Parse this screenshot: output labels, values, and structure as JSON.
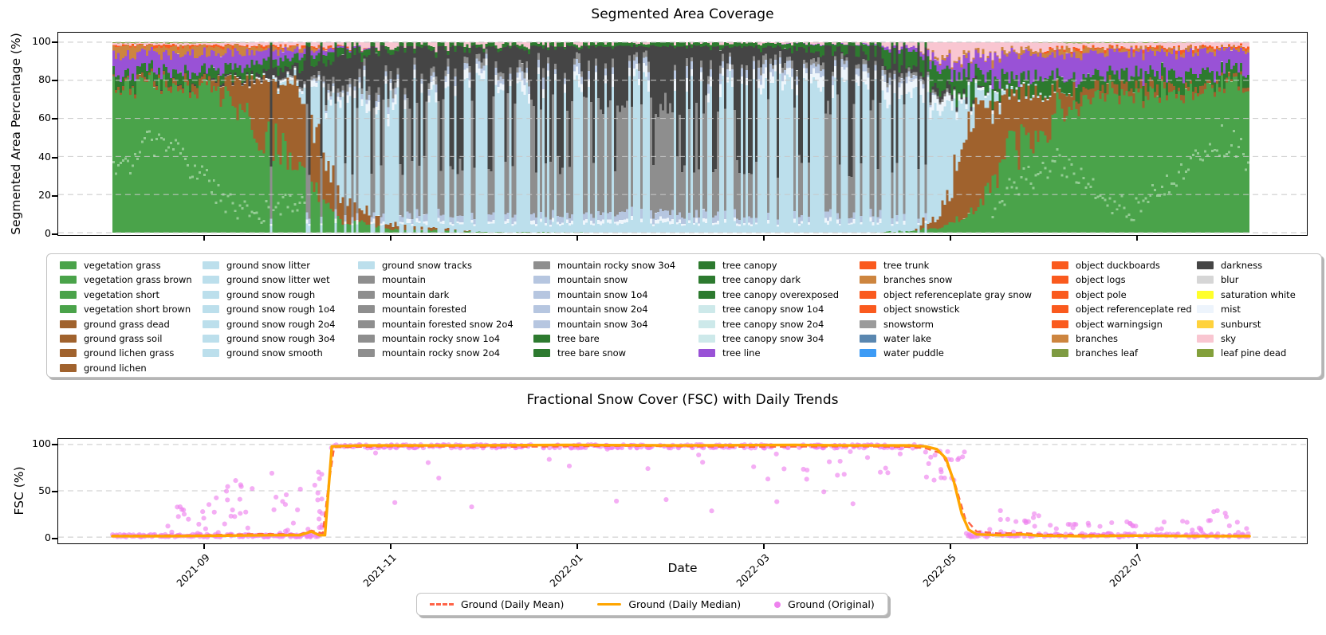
{
  "figure": {
    "background": "#ffffff"
  },
  "top_chart": {
    "title": "Segmented Area Coverage",
    "ylabel": "Segmented Area Percentage (%)",
    "yticks": [
      0,
      20,
      40,
      60,
      80,
      100
    ]
  },
  "bottom_chart": {
    "title": "Fractional Snow Cover (FSC) with Daily Trends",
    "ylabel": "FSC (%)",
    "xlabel": "Date",
    "yticks": [
      0,
      50,
      100
    ],
    "xticks": [
      "2021-09",
      "2021-11",
      "2022-01",
      "2022-03",
      "2022-05",
      "2022-07"
    ],
    "legend": [
      {
        "label": "Ground (Daily Mean)",
        "color": "#ff6347",
        "style": "dashed"
      },
      {
        "label": "Ground (Daily Median)",
        "color": "#ffa500",
        "style": "solid"
      },
      {
        "label": "Ground (Original)",
        "color": "#ee82ee",
        "style": "dot"
      }
    ]
  },
  "segmentation_legend": {
    "columns": [
      [
        {
          "label": "vegetation grass",
          "color": "#4aa34a"
        },
        {
          "label": "vegetation grass brown",
          "color": "#4aa34a"
        },
        {
          "label": "vegetation short",
          "color": "#4aa34a"
        },
        {
          "label": "vegetation short brown",
          "color": "#4aa34a"
        },
        {
          "label": "ground grass dead",
          "color": "#a0622d"
        },
        {
          "label": "ground grass soil",
          "color": "#a0622d"
        },
        {
          "label": "ground lichen grass",
          "color": "#a0622d"
        },
        {
          "label": "ground lichen",
          "color": "#a0622d"
        }
      ],
      [
        {
          "label": "ground snow litter",
          "color": "#bcdfec"
        },
        {
          "label": "ground snow litter wet",
          "color": "#bcdfec"
        },
        {
          "label": "ground snow rough",
          "color": "#bcdfec"
        },
        {
          "label": "ground snow rough 1o4",
          "color": "#bcdfec"
        },
        {
          "label": "ground snow rough 2o4",
          "color": "#bcdfec"
        },
        {
          "label": "ground snow rough 3o4",
          "color": "#bcdfec"
        },
        {
          "label": "ground snow smooth",
          "color": "#bcdfec"
        }
      ],
      [
        {
          "label": "ground snow tracks",
          "color": "#bcdfec"
        },
        {
          "label": "mountain",
          "color": "#8e8e8e"
        },
        {
          "label": "mountain dark",
          "color": "#8e8e8e"
        },
        {
          "label": "mountain forested",
          "color": "#8e8e8e"
        },
        {
          "label": "mountain forested snow 2o4",
          "color": "#8e8e8e"
        },
        {
          "label": "mountain rocky snow 1o4",
          "color": "#8e8e8e"
        },
        {
          "label": "mountain rocky snow 2o4",
          "color": "#8e8e8e"
        }
      ],
      [
        {
          "label": "mountain rocky snow 3o4",
          "color": "#8e8e8e"
        },
        {
          "label": "mountain snow",
          "color": "#b6c6e0"
        },
        {
          "label": "mountain snow 1o4",
          "color": "#b6c6e0"
        },
        {
          "label": "mountain snow 2o4",
          "color": "#b6c6e0"
        },
        {
          "label": "mountain snow 3o4",
          "color": "#b6c6e0"
        },
        {
          "label": "tree bare",
          "color": "#2d7a2f"
        },
        {
          "label": "tree bare snow",
          "color": "#2d7a2f"
        }
      ],
      [
        {
          "label": "tree canopy",
          "color": "#2d7a2f"
        },
        {
          "label": "tree canopy dark",
          "color": "#2d7a2f"
        },
        {
          "label": "tree canopy overexposed",
          "color": "#2d7a2f"
        },
        {
          "label": "tree canopy snow 1o4",
          "color": "#cde9ea"
        },
        {
          "label": "tree canopy snow 2o4",
          "color": "#cde9ea"
        },
        {
          "label": "tree canopy snow 3o4",
          "color": "#cde9ea"
        },
        {
          "label": "tree line",
          "color": "#9952d6"
        }
      ],
      [
        {
          "label": "tree trunk",
          "color": "#fa5a1e"
        },
        {
          "label": "branches snow",
          "color": "#cd853f"
        },
        {
          "label": "object referenceplate gray snow",
          "color": "#fa5a1e"
        },
        {
          "label": "object snowstick",
          "color": "#fa5a1e"
        },
        {
          "label": "snowstorm",
          "color": "#9b9b9b"
        },
        {
          "label": "water lake",
          "color": "#5a87b0"
        },
        {
          "label": "water puddle",
          "color": "#3d9bf5"
        }
      ],
      [
        {
          "label": "object duckboards",
          "color": "#fa5a1e"
        },
        {
          "label": "object logs",
          "color": "#fa5a1e"
        },
        {
          "label": "object pole",
          "color": "#fa5a1e"
        },
        {
          "label": "object referenceplate red",
          "color": "#fa5a1e"
        },
        {
          "label": "object warningsign",
          "color": "#fa5a1e"
        },
        {
          "label": "branches",
          "color": "#cd853f"
        },
        {
          "label": "branches leaf",
          "color": "#7e9b42"
        }
      ],
      [
        {
          "label": "darkness",
          "color": "#454545"
        },
        {
          "label": "blur",
          "color": "#d6d6d6"
        },
        {
          "label": "saturation white",
          "color": "#ffff2b"
        },
        {
          "label": "mist",
          "color": "#edf4fc"
        },
        {
          "label": "sunburst",
          "color": "#ffd23c"
        },
        {
          "label": "sky",
          "color": "#f9c6d1"
        },
        {
          "label": "leaf pine dead",
          "color": "#83a03b"
        }
      ]
    ]
  },
  "chart_data": [
    {
      "type": "area",
      "title": "Segmented Area Coverage",
      "ylabel": "Segmented Area Percentage (%)",
      "ylim": [
        0,
        105
      ],
      "x_range": [
        "2021-08",
        "2022-08"
      ],
      "xticks": [
        "2021-09",
        "2021-11",
        "2022-01",
        "2022-03",
        "2022-05",
        "2022-07"
      ],
      "grid": "horizontal-dashed",
      "colors": {
        "vegetation_grass": "#4aa34a",
        "ground_grass_dead": "#a0622d",
        "ground_snow": "#bcdfec",
        "mist": "#eef5fb",
        "mountain_snow": "#b6c6e0",
        "snow_gray": "#8e8e8e",
        "darkness": "#454545",
        "tree_canopy": "#2d7a2f",
        "tree_line": "#9952d6",
        "branches": "#cd853f",
        "tree_trunk": "#fa5a1e",
        "sky": "#f9c6d1",
        "leaf": "#83a03b"
      },
      "stack_order": [
        "vegetation_grass",
        "ground_grass_dead",
        "ground_snow",
        "mist",
        "mountain_snow",
        "snow_gray",
        "darkness",
        "tree_canopy",
        "tree_line",
        "branches",
        "tree_trunk",
        "sky",
        "leaf"
      ],
      "keyframes": [
        {
          "u": 0.0,
          "comp": {
            "vegetation_grass": 79,
            "ground_grass_dead": 1.5,
            "tree_canopy": 5,
            "tree_line": 8.5,
            "branches": 4,
            "tree_trunk": 0.7,
            "sky": 0.8,
            "leaf": 0.5
          }
        },
        {
          "u": 0.09,
          "comp": {
            "vegetation_grass": 77,
            "ground_grass_dead": 4,
            "tree_canopy": 5,
            "tree_line": 8,
            "branches": 3.5,
            "tree_trunk": 0.7,
            "sky": 1,
            "leaf": 0.5,
            "darkness": 0.5
          }
        },
        {
          "u": 0.13,
          "comp": {
            "vegetation_grass": 55,
            "ground_grass_dead": 26,
            "tree_canopy": 5.5,
            "tree_line": 6,
            "branches": 2.5,
            "tree_trunk": 0.8,
            "sky": 1.5,
            "darkness": 2,
            "mist": 0.7
          }
        },
        {
          "u": 0.165,
          "comp": {
            "vegetation_grass": 30,
            "ground_grass_dead": 45,
            "tree_canopy": 5,
            "tree_line": 3,
            "branches": 1.5,
            "tree_trunk": 0.8,
            "sky": 2.5,
            "darkness": 6,
            "mist": 1.5,
            "snow_gray": 1,
            "ground_snow": 3
          }
        },
        {
          "u": 0.2,
          "comp": {
            "vegetation_grass": 7,
            "ground_grass_dead": 13,
            "ground_snow": 50,
            "mist": 3.5,
            "mountain_snow": 2,
            "snow_gray": 3,
            "darkness": 11,
            "tree_canopy": 4,
            "tree_line": 1,
            "sky": 3,
            "tree_trunk": 0.5
          }
        },
        {
          "u": 0.24,
          "comp": {
            "vegetation_grass": 2,
            "ground_grass_dead": 3,
            "ground_snow": 68,
            "mist": 4.5,
            "mountain_snow": 3,
            "snow_gray": 4,
            "darkness": 12,
            "tree_canopy": 2.5,
            "sky": 3
          }
        },
        {
          "u": 0.32,
          "comp": {
            "vegetation_grass": 0.5,
            "ground_snow": 75,
            "mist": 4.5,
            "mountain_snow": 3.5,
            "snow_gray": 3.5,
            "darkness": 9,
            "tree_canopy": 2,
            "sky": 2.5
          }
        },
        {
          "u": 0.45,
          "comp": {
            "ground_snow": 78,
            "mist": 4,
            "mountain_snow": 4,
            "snow_gray": 3.5,
            "darkness": 7.5,
            "tree_canopy": 1.2,
            "sky": 1
          }
        },
        {
          "u": 0.58,
          "comp": {
            "ground_snow": 78,
            "mist": 5,
            "mountain_snow": 4,
            "snow_gray": 3,
            "darkness": 6,
            "tree_canopy": 2.5,
            "sky": 0.8
          }
        },
        {
          "u": 0.66,
          "comp": {
            "ground_snow": 75,
            "mist": 6.5,
            "mountain_snow": 3.5,
            "snow_gray": 2.5,
            "darkness": 3.5,
            "tree_canopy": 6,
            "sky": 1.2,
            "tree_line": 0.5
          }
        },
        {
          "u": 0.705,
          "comp": {
            "ground_snow": 70,
            "mist": 7,
            "mountain_snow": 2.5,
            "snow_gray": 2,
            "darkness": 2.5,
            "tree_canopy": 9,
            "sky": 3,
            "tree_line": 2,
            "vegetation_grass": 1
          }
        },
        {
          "u": 0.73,
          "comp": {
            "ground_snow": 52,
            "mist": 5,
            "snow_gray": 1.5,
            "darkness": 3,
            "tree_canopy": 10,
            "sky": 9,
            "tree_line": 5,
            "vegetation_grass": 3,
            "ground_grass_dead": 9,
            "branches": 1.5
          }
        },
        {
          "u": 0.755,
          "comp": {
            "ground_snow": 10,
            "mist": 2,
            "darkness": 1.5,
            "tree_canopy": 9,
            "sky": 8,
            "tree_line": 8,
            "vegetation_grass": 10,
            "ground_grass_dead": 50,
            "branches": 1.5
          }
        },
        {
          "u": 0.79,
          "comp": {
            "ground_snow": 1,
            "mist": 0.5,
            "tree_canopy": 8,
            "sky": 4,
            "tree_line": 12,
            "vegetation_grass": 44,
            "ground_grass_dead": 28,
            "branches": 2.5
          }
        },
        {
          "u": 0.85,
          "comp": {
            "tree_canopy": 7,
            "sky": 2.5,
            "tree_line": 11.5,
            "vegetation_grass": 70,
            "ground_grass_dead": 5.5,
            "branches": 2.2,
            "tree_trunk": 0.8,
            "leaf": 0.5
          }
        },
        {
          "u": 1.0,
          "comp": {
            "tree_canopy": 6,
            "sky": 2,
            "tree_line": 10,
            "vegetation_grass": 78.5,
            "ground_grass_dead": 1.5,
            "branches": 1.2,
            "tree_trunk": 0.8
          }
        }
      ],
      "night_duty": [
        [
          0,
          0
        ],
        [
          0.115,
          0
        ],
        [
          0.15,
          0.15
        ],
        [
          0.19,
          0.3
        ],
        [
          0.24,
          0.42
        ],
        [
          0.32,
          0.5
        ],
        [
          0.42,
          0.55
        ],
        [
          0.52,
          0.5
        ],
        [
          0.6,
          0.42
        ],
        [
          0.66,
          0.3
        ],
        [
          0.7,
          0.18
        ],
        [
          0.725,
          0.08
        ],
        [
          0.745,
          0.02
        ],
        [
          0.77,
          0
        ],
        [
          1,
          0
        ]
      ],
      "night_comp_a": {
        "ground_snow": 5,
        "mountain_snow": 4,
        "snow_gray": 58,
        "darkness": 30,
        "tree_canopy": 2,
        "mist": 2
      },
      "night_comp_b": {
        "ground_snow": 4,
        "mountain_snow": 3,
        "snow_gray": 26,
        "darkness": 64,
        "tree_canopy": 2,
        "mist": 1
      }
    },
    {
      "type": "line+scatter",
      "title": "Fractional Snow Cover (FSC) with Daily Trends",
      "xlabel": "Date",
      "ylabel": "FSC (%)",
      "ylim": [
        -6,
        106
      ],
      "x_range": [
        "2021-08",
        "2022-08"
      ],
      "series": [
        {
          "name": "Ground (Daily Mean)",
          "style": "dashed",
          "color": "#ff6347",
          "points": [
            [
              0,
              1.5
            ],
            [
              0.08,
              2
            ],
            [
              0.13,
              3.5
            ],
            [
              0.165,
              3
            ],
            [
              0.175,
              7
            ],
            [
              0.185,
              4
            ],
            [
              0.19,
              55
            ],
            [
              0.195,
              97
            ],
            [
              0.25,
              98
            ],
            [
              0.35,
              97.5
            ],
            [
              0.45,
              98.5
            ],
            [
              0.55,
              97.5
            ],
            [
              0.65,
              98
            ],
            [
              0.7,
              97.5
            ],
            [
              0.715,
              96
            ],
            [
              0.73,
              90
            ],
            [
              0.74,
              62
            ],
            [
              0.75,
              20
            ],
            [
              0.76,
              6
            ],
            [
              0.78,
              4
            ],
            [
              0.8,
              4.5
            ],
            [
              0.82,
              2.5
            ],
            [
              0.9,
              2
            ],
            [
              1,
              1.5
            ]
          ]
        },
        {
          "name": "Ground (Daily Median)",
          "style": "solid",
          "color": "#ffa500",
          "points": [
            [
              0,
              1
            ],
            [
              0.05,
              1
            ],
            [
              0.1,
              1.5
            ],
            [
              0.14,
              2
            ],
            [
              0.165,
              2
            ],
            [
              0.175,
              6
            ],
            [
              0.182,
              2
            ],
            [
              0.187,
              2
            ],
            [
              0.19,
              50
            ],
            [
              0.193,
              98
            ],
            [
              0.22,
              99
            ],
            [
              0.3,
              99
            ],
            [
              0.4,
              99.5
            ],
            [
              0.5,
              99
            ],
            [
              0.6,
              99.5
            ],
            [
              0.65,
              99
            ],
            [
              0.7,
              99
            ],
            [
              0.715,
              98
            ],
            [
              0.725,
              95
            ],
            [
              0.733,
              85
            ],
            [
              0.74,
              60
            ],
            [
              0.747,
              25
            ],
            [
              0.753,
              8
            ],
            [
              0.76,
              3
            ],
            [
              0.78,
              2
            ],
            [
              0.8,
              3
            ],
            [
              0.815,
              1.5
            ],
            [
              0.85,
              1
            ],
            [
              0.9,
              1.5
            ],
            [
              0.95,
              1
            ],
            [
              1,
              1
            ]
          ]
        }
      ],
      "scatter": {
        "name": "Ground (Original)",
        "color": "#ee82ee",
        "clusters": [
          {
            "u0": 0.0,
            "u1": 0.185,
            "n": 160,
            "y0": 0,
            "y1": 3,
            "seed": 1
          },
          {
            "u0": 0.04,
            "u1": 0.185,
            "n": 45,
            "y0": 3,
            "y1": 45,
            "seed": 2
          },
          {
            "u0": 0.1,
            "u1": 0.185,
            "n": 14,
            "y0": 45,
            "y1": 78,
            "seed": 3
          },
          {
            "u0": 0.19,
            "u1": 0.715,
            "n": 320,
            "y0": 96,
            "y1": 100,
            "seed": 4
          },
          {
            "u0": 0.2,
            "u1": 0.7,
            "n": 26,
            "y0": 55,
            "y1": 95,
            "seed": 5
          },
          {
            "u0": 0.22,
            "u1": 0.68,
            "n": 8,
            "y0": 25,
            "y1": 55,
            "seed": 6
          },
          {
            "u0": 0.715,
            "u1": 0.75,
            "n": 20,
            "y0": 60,
            "y1": 100,
            "seed": 7
          },
          {
            "u0": 0.75,
            "u1": 1.0,
            "n": 150,
            "y0": 0,
            "y1": 4,
            "seed": 8
          },
          {
            "u0": 0.76,
            "u1": 1.0,
            "n": 40,
            "y0": 4,
            "y1": 18,
            "seed": 9
          },
          {
            "u0": 0.78,
            "u1": 0.82,
            "n": 8,
            "y0": 15,
            "y1": 30,
            "seed": 10
          },
          {
            "u0": 0.955,
            "u1": 0.985,
            "n": 5,
            "y0": 15,
            "y1": 33,
            "seed": 11
          }
        ]
      }
    }
  ]
}
